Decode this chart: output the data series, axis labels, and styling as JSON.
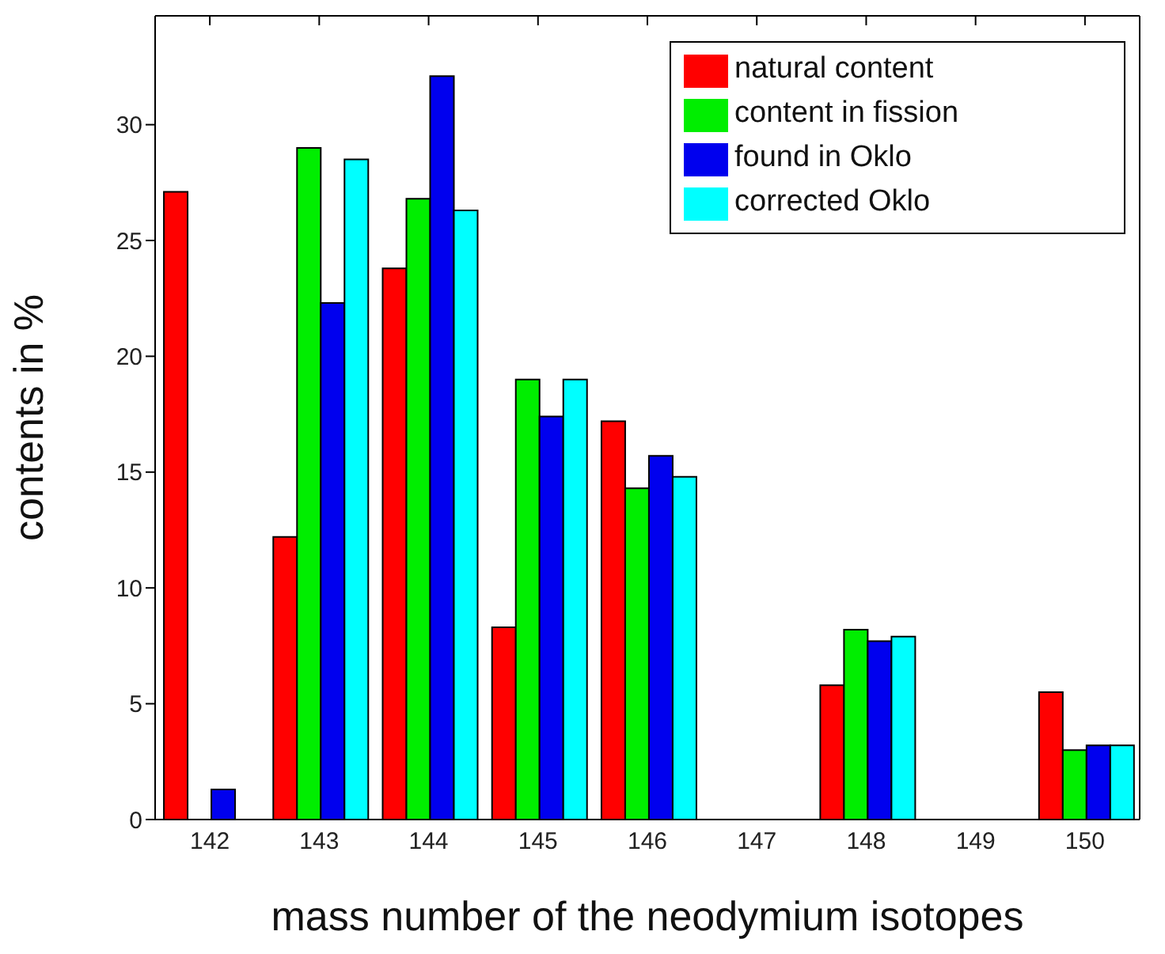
{
  "chart_data": {
    "type": "bar",
    "xlabel": "mass number of the neodymium isotopes",
    "ylabel": "contents in %",
    "categories": [
      "142",
      "143",
      "144",
      "145",
      "146",
      "147",
      "148",
      "149",
      "150"
    ],
    "series": [
      {
        "name": "natural content",
        "color": "#ff0000",
        "values": [
          27.1,
          12.2,
          23.8,
          8.3,
          17.2,
          null,
          5.8,
          null,
          5.5
        ]
      },
      {
        "name": "content in fission",
        "color": "#00ee00",
        "values": [
          null,
          29.0,
          26.8,
          19.0,
          14.3,
          null,
          8.2,
          null,
          3.0
        ]
      },
      {
        "name": "found in Oklo",
        "color": "#0000ee",
        "values": [
          1.3,
          22.3,
          32.1,
          17.4,
          15.7,
          null,
          7.7,
          null,
          3.2
        ]
      },
      {
        "name": "corrected Oklo",
        "color": "#00ffff",
        "values": [
          null,
          28.5,
          26.3,
          19.0,
          14.8,
          null,
          7.9,
          null,
          3.2
        ]
      }
    ],
    "ylim": [
      0,
      34.7
    ],
    "yticks": [
      0,
      5,
      10,
      15,
      20,
      25,
      30
    ],
    "grid": false,
    "legend": "top right"
  }
}
